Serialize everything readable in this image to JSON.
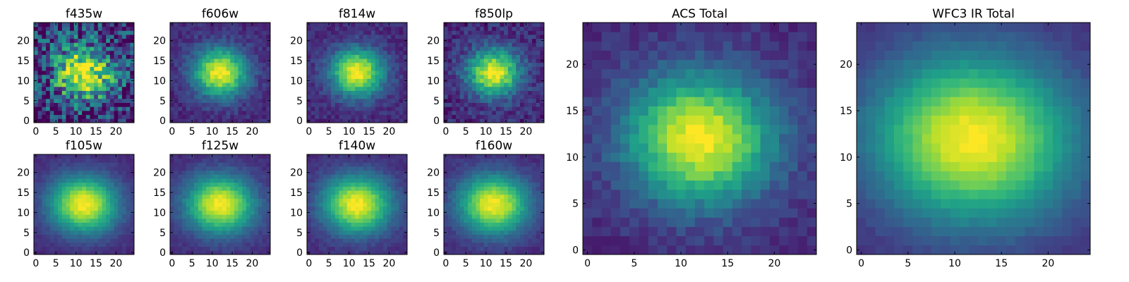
{
  "chart_data": [
    {
      "type": "heatmap",
      "title": "f435w",
      "image_size": 25,
      "noise": 0.55,
      "sigma": 5,
      "seed": 11,
      "ellipticity": 0.1,
      "xticks": [
        "0",
        "5",
        "10",
        "15",
        "20"
      ],
      "yticks": [
        "0",
        "5",
        "10",
        "15",
        "20"
      ],
      "xlim": [
        0,
        24
      ],
      "ylim": [
        0,
        24
      ],
      "colormap": "viridis",
      "grid": false
    },
    {
      "type": "heatmap",
      "title": "f606w",
      "image_size": 25,
      "noise": 0.12,
      "sigma": 4.5,
      "seed": 23,
      "ellipticity": 0.1,
      "xticks": [
        "0",
        "5",
        "10",
        "15",
        "20"
      ],
      "yticks": [
        "0",
        "5",
        "10",
        "15",
        "20"
      ],
      "xlim": [
        0,
        24
      ],
      "ylim": [
        0,
        24
      ],
      "colormap": "viridis",
      "grid": false
    },
    {
      "type": "heatmap",
      "title": "f814w",
      "image_size": 25,
      "noise": 0.12,
      "sigma": 4.4,
      "seed": 37,
      "ellipticity": 0.1,
      "xticks": [
        "0",
        "5",
        "10",
        "15",
        "20"
      ],
      "yticks": [
        "0",
        "5",
        "10",
        "15",
        "20"
      ],
      "xlim": [
        0,
        24
      ],
      "ylim": [
        0,
        24
      ],
      "colormap": "viridis",
      "grid": false
    },
    {
      "type": "heatmap",
      "title": "f850lp",
      "image_size": 25,
      "noise": 0.18,
      "sigma": 4.3,
      "seed": 41,
      "ellipticity": 0.1,
      "xticks": [
        "0",
        "5",
        "10",
        "15",
        "20"
      ],
      "yticks": [
        "0",
        "5",
        "10",
        "15",
        "20"
      ],
      "xlim": [
        0,
        24
      ],
      "ylim": [
        0,
        24
      ],
      "colormap": "viridis",
      "grid": false
    },
    {
      "type": "heatmap",
      "title": "f105w",
      "image_size": 25,
      "noise": 0.06,
      "sigma": 5.5,
      "seed": 53,
      "ellipticity": 0.18,
      "xticks": [
        "0",
        "5",
        "10",
        "15",
        "20"
      ],
      "yticks": [
        "0",
        "5",
        "10",
        "15",
        "20"
      ],
      "xlim": [
        0,
        24
      ],
      "ylim": [
        0,
        24
      ],
      "colormap": "viridis",
      "grid": false
    },
    {
      "type": "heatmap",
      "title": "f125w",
      "image_size": 25,
      "noise": 0.07,
      "sigma": 5.6,
      "seed": 61,
      "ellipticity": 0.18,
      "xticks": [
        "0",
        "5",
        "10",
        "15",
        "20"
      ],
      "yticks": [
        "0",
        "5",
        "10",
        "15",
        "20"
      ],
      "xlim": [
        0,
        24
      ],
      "ylim": [
        0,
        24
      ],
      "colormap": "viridis",
      "grid": false
    },
    {
      "type": "heatmap",
      "title": "f140w",
      "image_size": 25,
      "noise": 0.07,
      "sigma": 5.6,
      "seed": 71,
      "ellipticity": 0.18,
      "xticks": [
        "0",
        "5",
        "10",
        "15",
        "20"
      ],
      "yticks": [
        "0",
        "5",
        "10",
        "15",
        "20"
      ],
      "xlim": [
        0,
        24
      ],
      "ylim": [
        0,
        24
      ],
      "colormap": "viridis",
      "grid": false
    },
    {
      "type": "heatmap",
      "title": "f160w",
      "image_size": 25,
      "noise": 0.07,
      "sigma": 5.7,
      "seed": 83,
      "ellipticity": 0.18,
      "xticks": [
        "0",
        "5",
        "10",
        "15",
        "20"
      ],
      "yticks": [
        "0",
        "5",
        "10",
        "15",
        "20"
      ],
      "xlim": [
        0,
        24
      ],
      "ylim": [
        0,
        24
      ],
      "colormap": "viridis",
      "grid": false
    },
    {
      "type": "heatmap",
      "title": "ACS Total",
      "image_size": 25,
      "noise": 0.1,
      "sigma": 5.2,
      "seed": 97,
      "ellipticity": 0.12,
      "xticks": [
        "0",
        "5",
        "10",
        "15",
        "20"
      ],
      "yticks": [
        "0",
        "5",
        "10",
        "15",
        "20"
      ],
      "xlim": [
        0,
        24
      ],
      "ylim": [
        0,
        24
      ],
      "colormap": "viridis",
      "grid": false
    },
    {
      "type": "heatmap",
      "title": "WFC3 IR Total",
      "image_size": 25,
      "noise": 0.04,
      "sigma": 7,
      "seed": 101,
      "ellipticity": 0.18,
      "xticks": [
        "0",
        "5",
        "10",
        "15",
        "20"
      ],
      "yticks": [
        "0",
        "5",
        "10",
        "15",
        "20"
      ],
      "xlim": [
        0,
        24
      ],
      "ylim": [
        0,
        24
      ],
      "colormap": "viridis",
      "grid": false
    }
  ]
}
